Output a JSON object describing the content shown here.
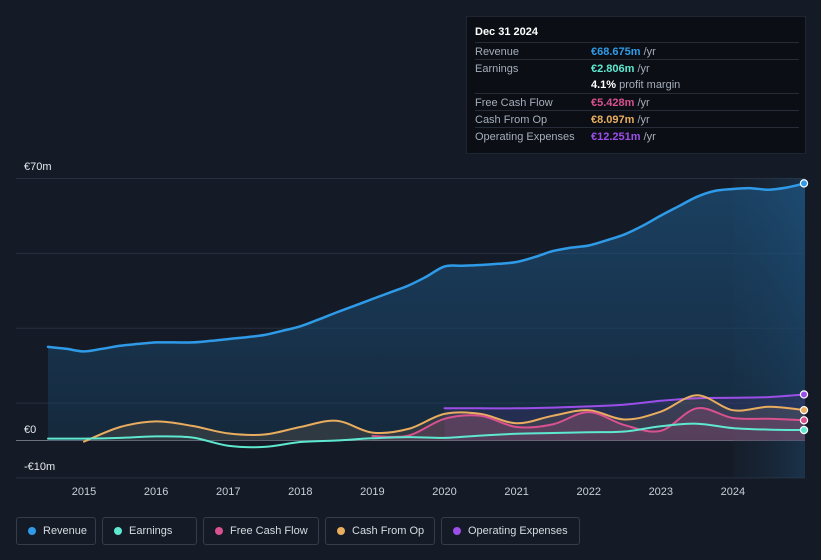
{
  "colors": {
    "revenue": "#2f9be8",
    "earnings": "#5ee8d0",
    "free_cash_flow": "#d9518f",
    "cash_from_op": "#e9ad5f",
    "operating_expenses": "#9b4fe8",
    "background": "#151b26"
  },
  "tooltip": {
    "date": "Dec 31 2024",
    "rows": [
      {
        "label": "Revenue",
        "value": "€68.675m",
        "unit": "/yr",
        "color": "#2f9be8"
      },
      {
        "label": "Earnings",
        "value": "€2.806m",
        "unit": "/yr",
        "color": "#5ee8d0"
      },
      {
        "label": "",
        "value": "4.1%",
        "unit": "profit margin",
        "color": "#ffffff"
      },
      {
        "label": "Free Cash Flow",
        "value": "€5.428m",
        "unit": "/yr",
        "color": "#d9518f"
      },
      {
        "label": "Cash From Op",
        "value": "€8.097m",
        "unit": "/yr",
        "color": "#e9ad5f"
      },
      {
        "label": "Operating Expenses",
        "value": "€12.251m",
        "unit": "/yr",
        "color": "#9b4fe8"
      }
    ]
  },
  "legend": [
    {
      "label": "Revenue",
      "color": "#2f9be8"
    },
    {
      "label": "Earnings",
      "color": "#5ee8d0"
    },
    {
      "label": "Free Cash Flow",
      "color": "#d9518f"
    },
    {
      "label": "Cash From Op",
      "color": "#e9ad5f"
    },
    {
      "label": "Operating Expenses",
      "color": "#9b4fe8"
    }
  ],
  "chart_data": {
    "type": "area",
    "title": "",
    "xlabel": "",
    "ylabel": "",
    "y_tick_labels": [
      "€70m",
      "€0",
      "-€10m"
    ],
    "ylim": [
      -10,
      70
    ],
    "xlim": [
      2014.5,
      2025.0
    ],
    "x_ticks": [
      2015,
      2016,
      2017,
      2018,
      2019,
      2020,
      2021,
      2022,
      2023,
      2024
    ],
    "x_tick_labels": [
      "2015",
      "2016",
      "2017",
      "2018",
      "2019",
      "2020",
      "2021",
      "2022",
      "2023",
      "2024"
    ],
    "forecast_start": 2024.0,
    "series": [
      {
        "name": "Revenue",
        "color": "#2f9be8",
        "fill": true,
        "x": [
          2014.5,
          2014.75,
          2015.0,
          2015.25,
          2015.5,
          2015.75,
          2016.0,
          2016.25,
          2016.5,
          2016.75,
          2017.0,
          2017.25,
          2017.5,
          2017.75,
          2018.0,
          2018.25,
          2018.5,
          2018.75,
          2019.0,
          2019.25,
          2019.5,
          2019.75,
          2020.0,
          2020.25,
          2020.5,
          2020.75,
          2021.0,
          2021.25,
          2021.5,
          2021.75,
          2022.0,
          2022.25,
          2022.5,
          2022.75,
          2023.0,
          2023.25,
          2023.5,
          2023.75,
          2024.0,
          2024.25,
          2024.5,
          2024.75,
          2025.0
        ],
        "values": [
          25,
          24.5,
          23.8,
          24.5,
          25.3,
          25.8,
          26.2,
          26.2,
          26.2,
          26.6,
          27.1,
          27.6,
          28.2,
          29.3,
          30.5,
          32.3,
          34.2,
          36.0,
          37.8,
          39.6,
          41.4,
          43.8,
          46.5,
          46.7,
          46.9,
          47.2,
          47.7,
          49.0,
          50.6,
          51.5,
          52.1,
          53.5,
          55.1,
          57.4,
          60.1,
          62.6,
          65.1,
          66.7,
          67.2,
          67.4,
          67.0,
          67.6,
          68.7
        ]
      },
      {
        "name": "Earnings",
        "color": "#5ee8d0",
        "fill": false,
        "x": [
          2014.5,
          2015.0,
          2015.5,
          2016.0,
          2016.5,
          2017.0,
          2017.5,
          2018.0,
          2018.5,
          2019.0,
          2019.5,
          2020.0,
          2020.5,
          2021.0,
          2021.5,
          2022.0,
          2022.5,
          2023.0,
          2023.5,
          2024.0,
          2024.5,
          2025.0
        ],
        "values": [
          0.5,
          0.5,
          0.7,
          1.1,
          0.8,
          -1.4,
          -1.7,
          -0.4,
          0,
          0.6,
          0.9,
          0.7,
          1.3,
          1.8,
          2.0,
          2.2,
          2.4,
          3.8,
          4.5,
          3.3,
          2.9,
          2.8
        ]
      },
      {
        "name": "Free Cash Flow",
        "color": "#d9518f",
        "fill": true,
        "x": [
          2019.0,
          2019.5,
          2020.0,
          2020.5,
          2021.0,
          2021.5,
          2022.0,
          2022.5,
          2023.0,
          2023.5,
          2024.0,
          2024.5,
          2025.0
        ],
        "values": [
          1.2,
          1.3,
          5.8,
          6.6,
          3.6,
          4.3,
          7.6,
          4.1,
          2.6,
          8.6,
          6.0,
          5.8,
          5.4
        ]
      },
      {
        "name": "Cash From Op",
        "color": "#e9ad5f",
        "fill": true,
        "x": [
          2015.0,
          2015.5,
          2016.0,
          2016.5,
          2017.0,
          2017.5,
          2018.0,
          2018.5,
          2019.0,
          2019.5,
          2020.0,
          2020.5,
          2021.0,
          2021.5,
          2022.0,
          2022.5,
          2023.0,
          2023.5,
          2024.0,
          2024.5,
          2025.0
        ],
        "values": [
          -0.3,
          3.6,
          5.1,
          3.9,
          1.9,
          1.6,
          3.6,
          5.3,
          2.1,
          3.1,
          7.1,
          7.1,
          4.6,
          6.6,
          8.1,
          5.6,
          7.7,
          12.1,
          8.1,
          9.0,
          8.1
        ]
      },
      {
        "name": "Operating Expenses",
        "color": "#9b4fe8",
        "fill": true,
        "x": [
          2020.0,
          2020.5,
          2021.0,
          2021.5,
          2022.0,
          2022.5,
          2023.0,
          2023.5,
          2024.0,
          2024.5,
          2025.0
        ],
        "values": [
          8.6,
          8.6,
          8.6,
          8.8,
          9.1,
          9.6,
          10.6,
          11.3,
          11.4,
          11.6,
          12.3
        ]
      }
    ]
  }
}
